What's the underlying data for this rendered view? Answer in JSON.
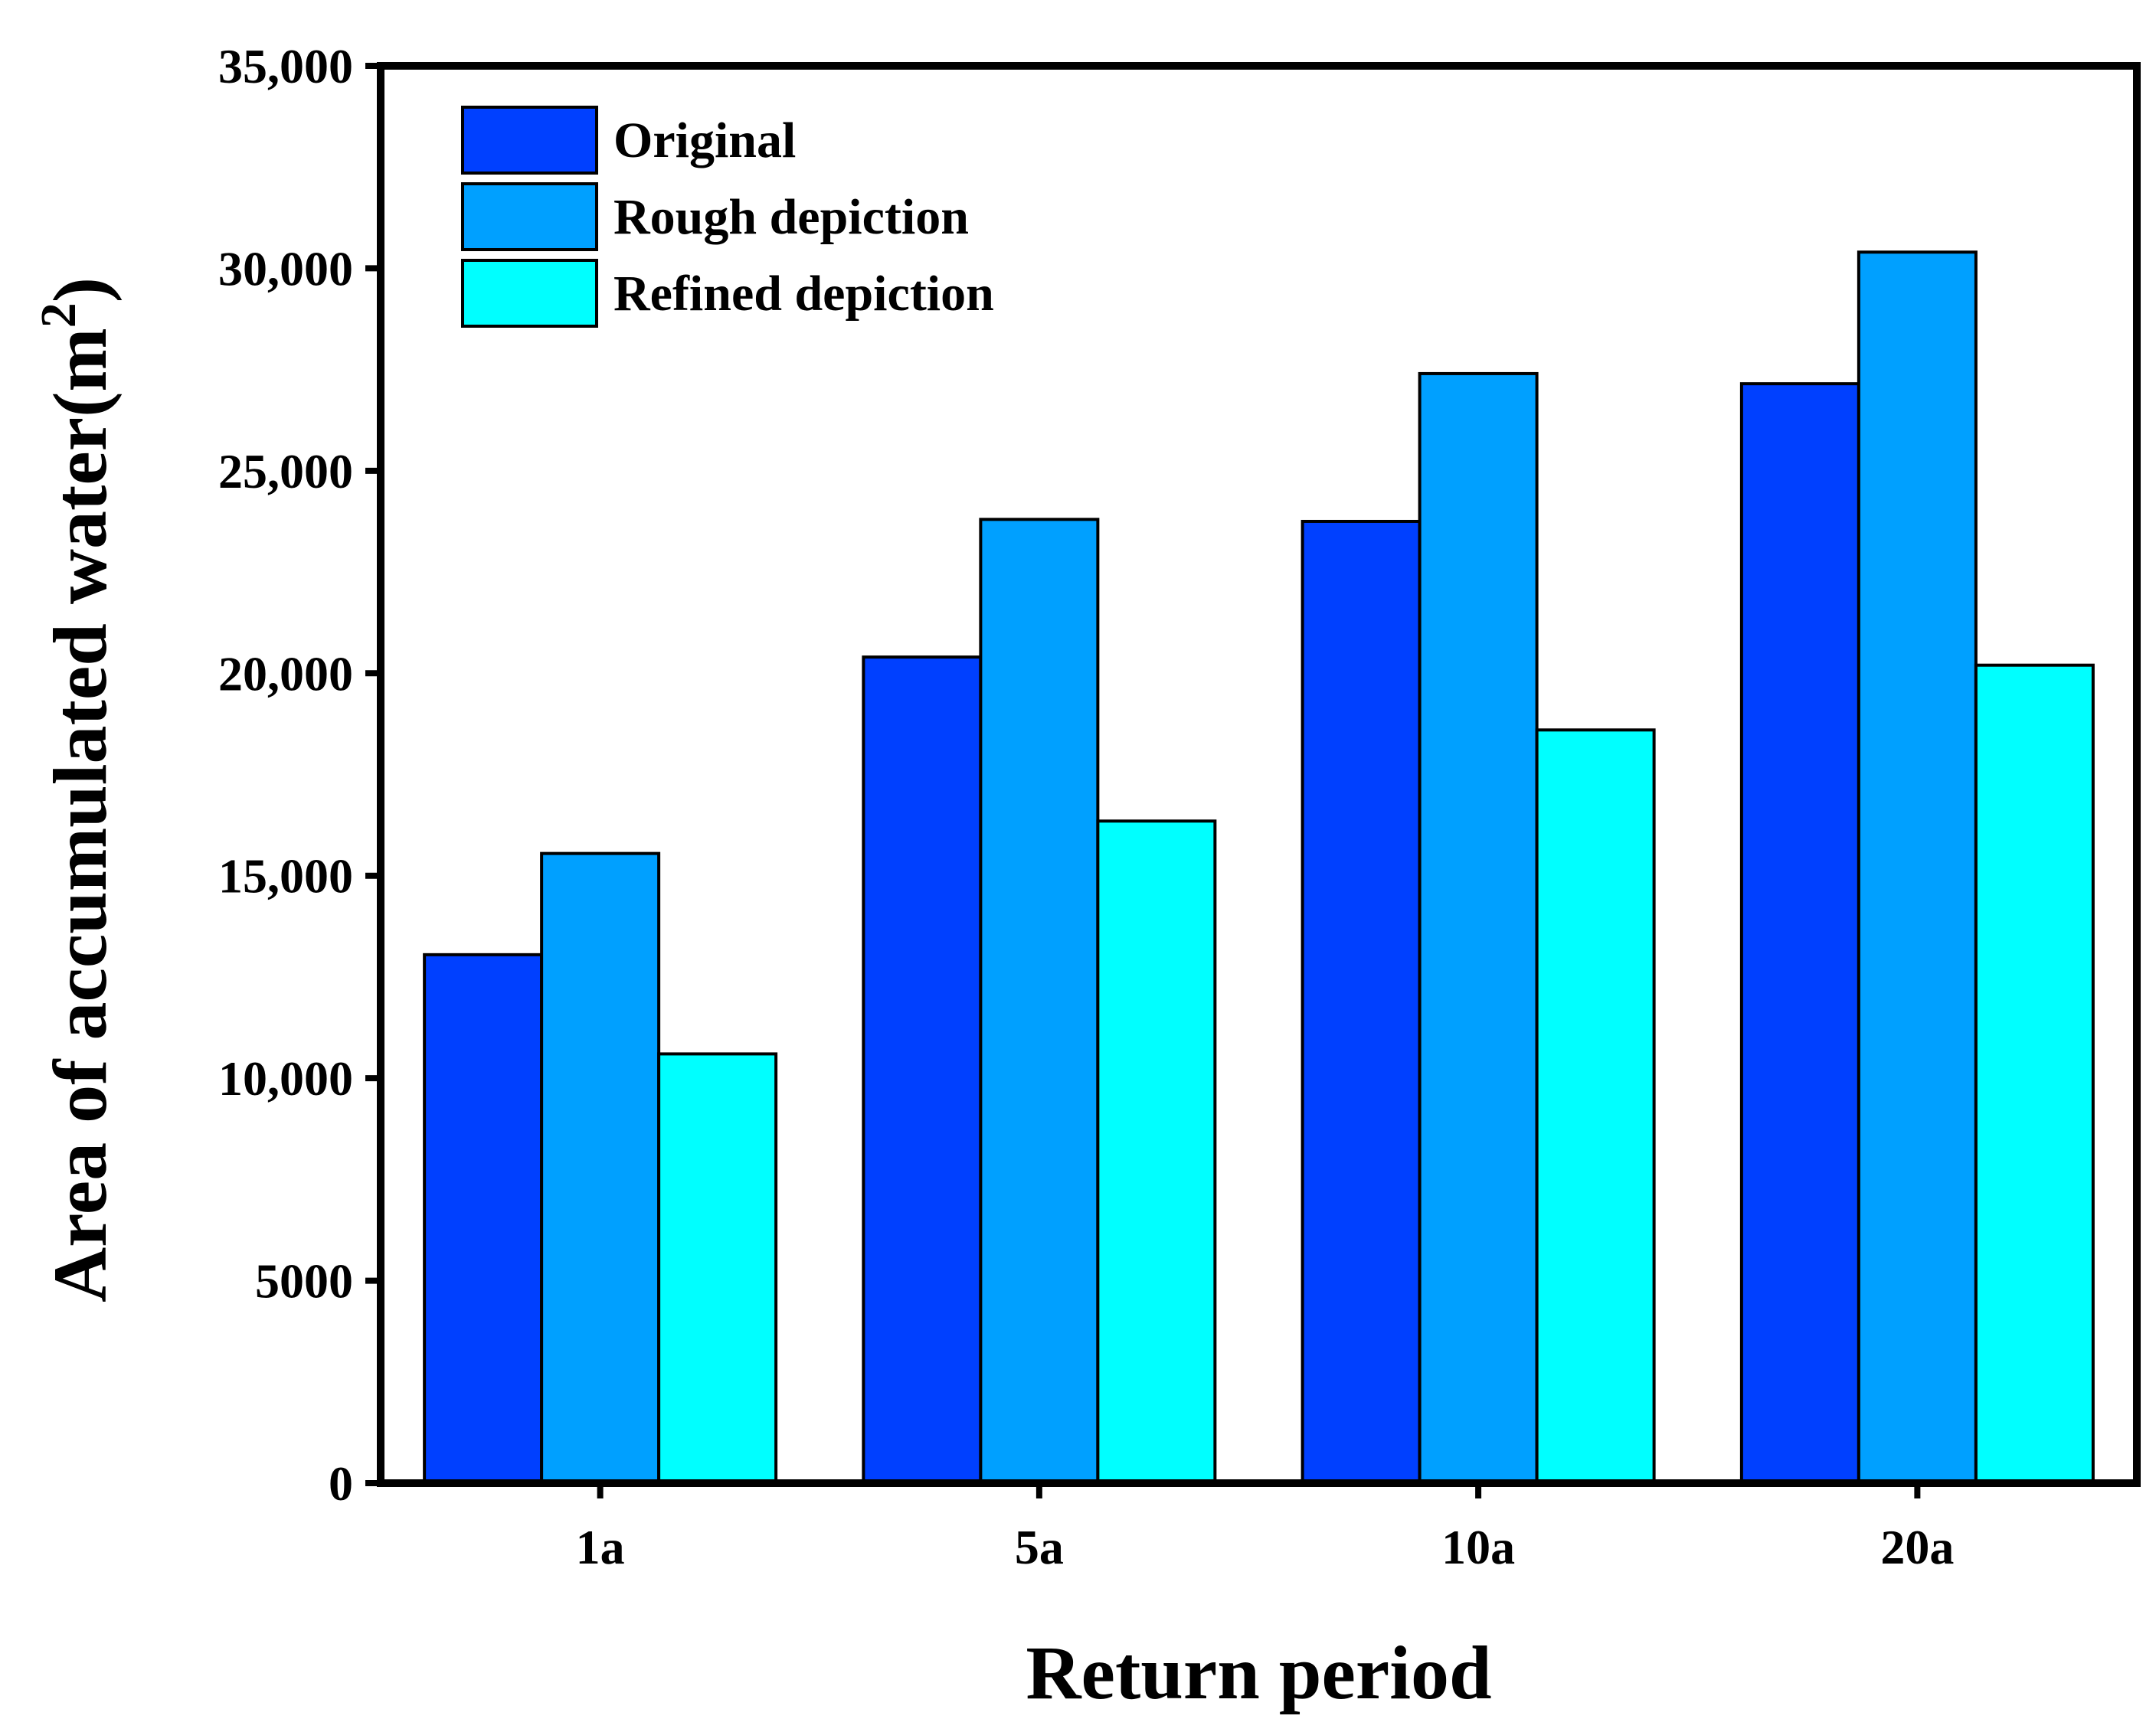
{
  "chart_data": {
    "type": "bar",
    "title": "",
    "xlabel": "Return period",
    "ylabel": "Area of accumulated water(m",
    "ylabel_sup": "2",
    "ylabel_close": ")",
    "categories": [
      "1a",
      "5a",
      "10a",
      "20a"
    ],
    "series": [
      {
        "name": "Original",
        "color": "#0040ff",
        "values": [
          13050,
          20400,
          23750,
          27150
        ]
      },
      {
        "name": "Rough depiction",
        "color": "#00a0ff",
        "values": [
          15550,
          23800,
          27400,
          30400
        ]
      },
      {
        "name": "Refined depiction",
        "color": "#00ffff",
        "values": [
          10600,
          16350,
          18600,
          20200
        ]
      }
    ],
    "ylim": [
      0,
      35000
    ],
    "yticks": [
      0,
      5000,
      10000,
      15000,
      20000,
      25000,
      30000,
      35000
    ],
    "ytick_labels": [
      "0",
      "5000",
      "10,000",
      "15,000",
      "20,000",
      "25,000",
      "30,000",
      "35,000"
    ],
    "grid": false,
    "legend_position": "top-left"
  }
}
